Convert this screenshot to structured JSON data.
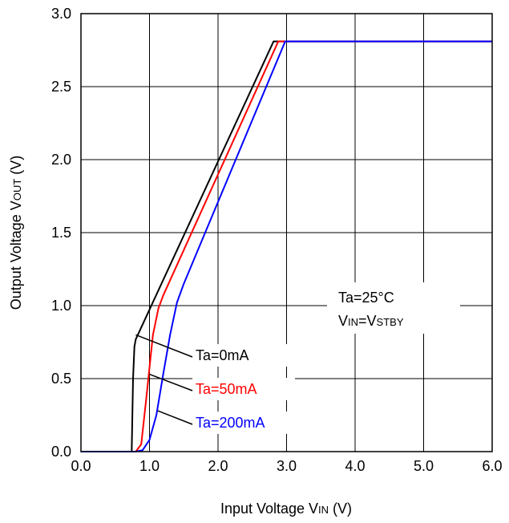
{
  "chart_data": {
    "type": "line",
    "xlabel": {
      "main": "Input Voltage V",
      "sub": "IN",
      "unit": " (V)"
    },
    "ylabel": {
      "main": "Output Voltage V",
      "sub": "OUT",
      "unit": " (V)"
    },
    "xlim": [
      0,
      6
    ],
    "ylim": [
      0,
      3
    ],
    "x_ticks": [
      0,
      1,
      2,
      3,
      4,
      5,
      6
    ],
    "y_ticks": [
      0,
      0.5,
      1,
      1.5,
      2,
      2.5,
      3
    ],
    "x_tick_labels": [
      "0.0",
      "1.0",
      "2.0",
      "3.0",
      "4.0",
      "5.0",
      "6.0"
    ],
    "y_tick_labels": [
      "0.0",
      "0.5",
      "1.0",
      "1.5",
      "2.0",
      "2.5",
      "3.0"
    ],
    "grid": true,
    "annotations": {
      "line1": "Ta=25°C",
      "line2": {
        "a": "V",
        "a_sub": "IN",
        "b": "=V",
        "b_sub": "STBY"
      }
    },
    "series": [
      {
        "name": "Ta=0mA",
        "color": "#000000",
        "points": [
          [
            0,
            0
          ],
          [
            0.74,
            0
          ],
          [
            0.76,
            0.5
          ],
          [
            0.78,
            0.72
          ],
          [
            0.8,
            0.77
          ],
          [
            2.81,
            2.81
          ],
          [
            6,
            2.81
          ]
        ]
      },
      {
        "name": "Ta=50mA",
        "color": "#ff0000",
        "points": [
          [
            0,
            0
          ],
          [
            0.8,
            0
          ],
          [
            0.88,
            0.05
          ],
          [
            0.95,
            0.35
          ],
          [
            1.05,
            0.8
          ],
          [
            1.13,
            0.98
          ],
          [
            1.2,
            1.07
          ],
          [
            2.88,
            2.81
          ],
          [
            6,
            2.81
          ]
        ]
      },
      {
        "name": "Ta=200mA",
        "color": "#0000ff",
        "points": [
          [
            0,
            0
          ],
          [
            0.8,
            0
          ],
          [
            0.9,
            0.01
          ],
          [
            1.0,
            0.08
          ],
          [
            1.1,
            0.25
          ],
          [
            1.2,
            0.53
          ],
          [
            1.3,
            0.8
          ],
          [
            1.4,
            1.02
          ],
          [
            1.5,
            1.15
          ],
          [
            2.98,
            2.81
          ],
          [
            6,
            2.81
          ]
        ]
      }
    ],
    "series_labels": [
      {
        "text": "Ta=0mA",
        "color": "#000000",
        "anchor_xy": [
          0.8,
          0.8
        ]
      },
      {
        "text": "Ta=50mA",
        "color": "#ff0000",
        "anchor_xy": [
          1.0,
          0.53
        ]
      },
      {
        "text": "Ta=200mA",
        "color": "#0000ff",
        "anchor_xy": [
          1.12,
          0.28
        ]
      }
    ]
  }
}
